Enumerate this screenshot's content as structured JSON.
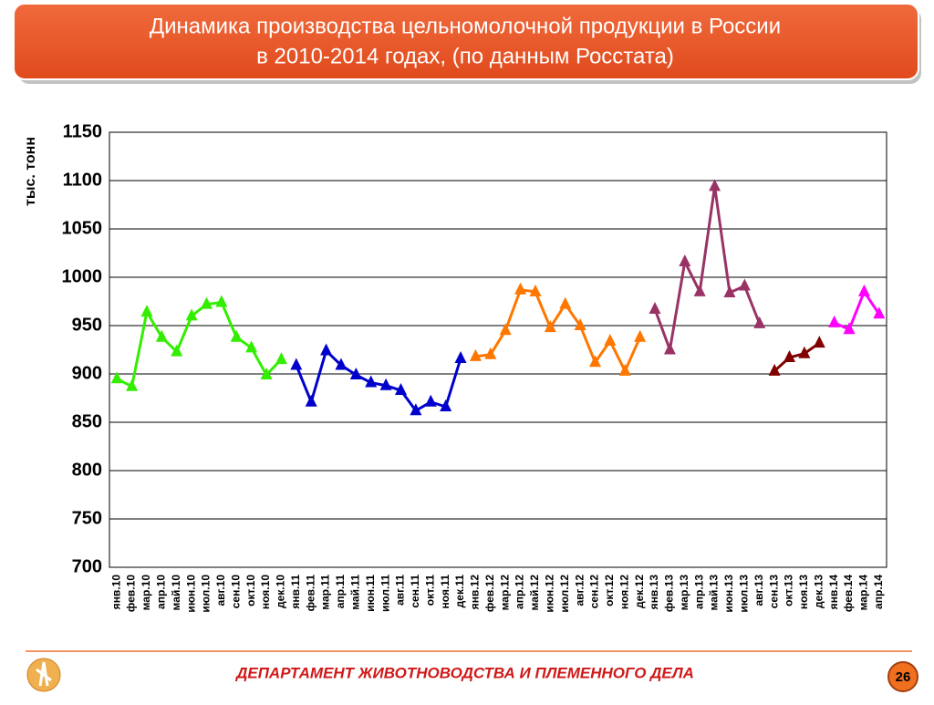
{
  "slide": {
    "title_lines": [
      "Динамика производства цельномолочной продукции в России",
      "в 2010-2014 годах, (по данным Росстата)"
    ],
    "footer": "ДЕПАРТАМЕНТ ЖИВОТНОВОДСТВА И ПЛЕМЕННОГО ДЕЛА",
    "page": "26"
  },
  "chart_data": {
    "type": "line",
    "y_label": "тыс. тонн",
    "categories": [
      "янв.10",
      "фев.10",
      "мар.10",
      "апр.10",
      "май.10",
      "июн.10",
      "июл.10",
      "авг.10",
      "сен.10",
      "окт.10",
      "ноя.10",
      "дек.10",
      "янв.11",
      "фев.11",
      "мар.11",
      "апр.11",
      "май.11",
      "июн.11",
      "июл.11",
      "авг.11",
      "сен.11",
      "окт.11",
      "ноя.11",
      "дек.11",
      "янв.12",
      "фев.12",
      "мар.12",
      "апр.12",
      "май.12",
      "июн.12",
      "июл.12",
      "авг.12",
      "сен.12",
      "окт.12",
      "ноя.12",
      "дек.12",
      "янв.13",
      "фев.13",
      "мар.13",
      "апр.13",
      "май.13",
      "июн.13",
      "июл.13",
      "авг.13",
      "сен.13",
      "окт.13",
      "ноя.13",
      "дек.13",
      "янв.14",
      "фев.14",
      "мар.14",
      "апр.14"
    ],
    "series": [
      {
        "color": "#33ee00",
        "values": [
          895,
          887,
          964,
          938,
          923,
          960,
          972,
          974,
          938,
          927,
          899,
          915,
          null,
          null,
          null,
          null,
          null,
          null,
          null,
          null,
          null,
          null,
          null,
          null,
          null,
          null,
          null,
          null,
          null,
          null,
          null,
          null,
          null,
          null,
          null,
          null,
          null,
          null,
          null,
          null,
          null,
          null,
          null,
          null,
          null,
          null,
          null,
          null,
          null,
          null,
          null,
          null
        ]
      },
      {
        "color": "#0000cc",
        "values": [
          null,
          null,
          null,
          null,
          null,
          null,
          null,
          null,
          null,
          null,
          null,
          null,
          909,
          871,
          924,
          909,
          899,
          891,
          888,
          883,
          862,
          871,
          866,
          916,
          null,
          null,
          null,
          null,
          null,
          null,
          null,
          null,
          null,
          null,
          null,
          null,
          null,
          null,
          null,
          null,
          null,
          null,
          null,
          null,
          null,
          null,
          null,
          null,
          null,
          null,
          null,
          null
        ]
      },
      {
        "color": "#ff7700",
        "values": [
          null,
          null,
          null,
          null,
          null,
          null,
          null,
          null,
          null,
          null,
          null,
          null,
          null,
          null,
          null,
          null,
          null,
          null,
          null,
          null,
          null,
          null,
          null,
          null,
          918,
          920,
          945,
          987,
          985,
          948,
          972,
          950,
          912,
          934,
          903,
          938,
          null,
          null,
          null,
          null,
          null,
          null,
          null,
          null,
          null,
          null,
          null,
          null,
          null,
          null,
          null,
          null
        ]
      },
      {
        "color": "#993366",
        "values": [
          null,
          null,
          null,
          null,
          null,
          null,
          null,
          null,
          null,
          null,
          null,
          null,
          null,
          null,
          null,
          null,
          null,
          null,
          null,
          null,
          null,
          null,
          null,
          null,
          null,
          null,
          null,
          null,
          null,
          null,
          null,
          null,
          null,
          null,
          null,
          null,
          967,
          925,
          1016,
          985,
          1094,
          984,
          991,
          952,
          null,
          null,
          null,
          null,
          null,
          null,
          null,
          null
        ]
      },
      {
        "color": "#800000",
        "values": [
          null,
          null,
          null,
          null,
          null,
          null,
          null,
          null,
          null,
          null,
          null,
          null,
          null,
          null,
          null,
          null,
          null,
          null,
          null,
          null,
          null,
          null,
          null,
          null,
          null,
          null,
          null,
          null,
          null,
          null,
          null,
          null,
          null,
          null,
          null,
          null,
          null,
          null,
          null,
          null,
          null,
          null,
          null,
          null,
          903,
          917,
          921,
          932,
          null,
          null,
          null,
          null
        ]
      },
      {
        "color": "#ff00ff",
        "values": [
          null,
          null,
          null,
          null,
          null,
          null,
          null,
          null,
          null,
          null,
          null,
          null,
          null,
          null,
          null,
          null,
          null,
          null,
          null,
          null,
          null,
          null,
          null,
          null,
          null,
          null,
          null,
          null,
          null,
          null,
          null,
          null,
          null,
          null,
          null,
          null,
          null,
          null,
          null,
          null,
          null,
          null,
          null,
          null,
          null,
          null,
          null,
          null,
          953,
          946,
          985,
          962
        ]
      }
    ],
    "ylim": [
      700,
      1150
    ],
    "yticks": [
      700,
      750,
      800,
      850,
      900,
      950,
      1000,
      1050,
      1100,
      1150
    ],
    "grid": true
  }
}
